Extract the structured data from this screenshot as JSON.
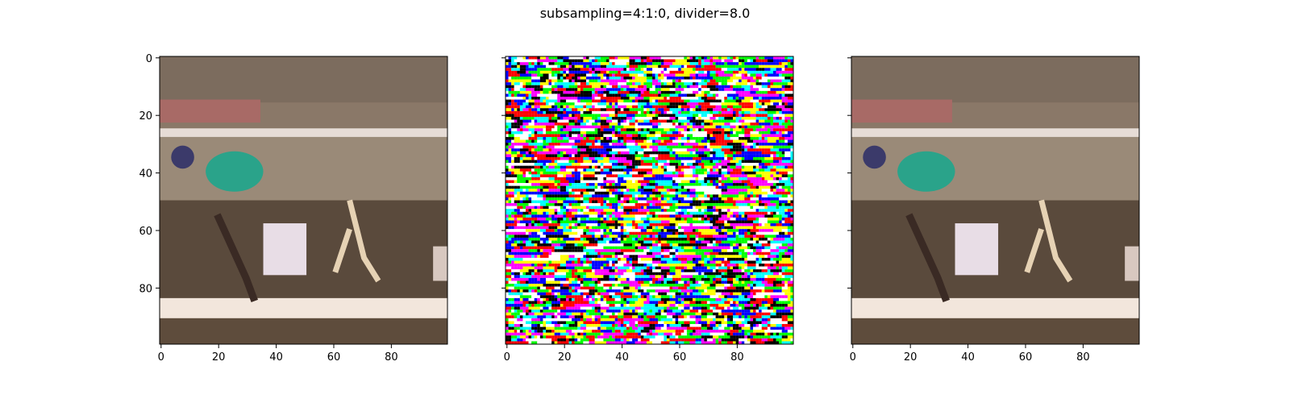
{
  "figure": {
    "title": "subsampling=4:1:0, divider=8.0"
  },
  "panels": [
    {
      "name": "left-image",
      "xticks": [
        "0",
        "20",
        "40",
        "60",
        "80"
      ],
      "yticks": [
        "0",
        "20",
        "40",
        "60",
        "80"
      ],
      "image_kind": "photo"
    },
    {
      "name": "middle-image",
      "xticks": [
        "0",
        "20",
        "40",
        "60",
        "80"
      ],
      "yticks": [],
      "image_kind": "noise"
    },
    {
      "name": "right-image",
      "xticks": [
        "0",
        "20",
        "40",
        "60",
        "80"
      ],
      "yticks": [],
      "image_kind": "photo"
    }
  ],
  "image_grid": {
    "width": 100,
    "height": 100
  },
  "colors": {
    "frame": "#000000",
    "noise_palette": [
      "#000000",
      "#ffffff",
      "#ff0000",
      "#00ff00",
      "#0000ff",
      "#ffff00",
      "#ff00ff",
      "#00ffff"
    ],
    "photo_track_dark": "#5a4a3c",
    "photo_track_light": "#f2e6dc",
    "photo_wall": "#8c7c6c",
    "photo_teal": "#2aa38a"
  }
}
